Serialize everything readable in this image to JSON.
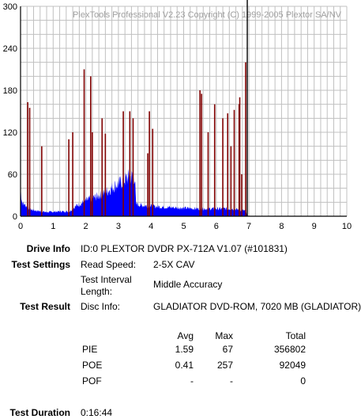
{
  "chart_data": {
    "type": "bar",
    "watermark": "PlexTools Professional V2.23 Copyright (C) 1999-2005 Plextor SA/NV",
    "ylim": [
      0,
      300
    ],
    "xlim": [
      0,
      10
    ],
    "y_ticks": [
      "0",
      "60",
      "120",
      "180",
      "240",
      "300"
    ],
    "x_ticks": [
      "0",
      "1",
      "2",
      "3",
      "4",
      "5",
      "6",
      "7",
      "8",
      "9",
      "10"
    ],
    "grid": true,
    "colors": {
      "pie": "#0000ff",
      "poe": "#800000",
      "marker": "#000000",
      "grid": "#c0c0c0"
    },
    "marker_x": 6.95,
    "pie_profile": [
      [
        0,
        40
      ],
      [
        0.05,
        20
      ],
      [
        0.2,
        14
      ],
      [
        0.3,
        10
      ],
      [
        0.5,
        8
      ],
      [
        0.8,
        6
      ],
      [
        1.2,
        7
      ],
      [
        1.5,
        7
      ],
      [
        1.7,
        15
      ],
      [
        1.9,
        20
      ],
      [
        2.1,
        25
      ],
      [
        2.4,
        30
      ],
      [
        2.7,
        38
      ],
      [
        2.9,
        45
      ],
      [
        3.1,
        50
      ],
      [
        3.3,
        57
      ],
      [
        3.5,
        58
      ],
      [
        3.54,
        18
      ],
      [
        3.7,
        16
      ],
      [
        4.2,
        14
      ],
      [
        4.6,
        13
      ],
      [
        5.0,
        12
      ],
      [
        5.5,
        11
      ],
      [
        6.0,
        11
      ],
      [
        6.5,
        11
      ],
      [
        6.9,
        8
      ],
      [
        6.95,
        0
      ]
    ],
    "poe_spikes": [
      [
        0.22,
        163
      ],
      [
        0.28,
        155
      ],
      [
        0.65,
        100
      ],
      [
        1.48,
        110
      ],
      [
        1.6,
        120
      ],
      [
        1.95,
        210
      ],
      [
        2.15,
        200
      ],
      [
        2.2,
        120
      ],
      [
        2.5,
        140
      ],
      [
        2.6,
        118
      ],
      [
        3.15,
        150
      ],
      [
        3.35,
        150
      ],
      [
        3.45,
        140
      ],
      [
        3.9,
        90
      ],
      [
        3.95,
        150
      ],
      [
        4.05,
        125
      ],
      [
        5.5,
        180
      ],
      [
        5.55,
        175
      ],
      [
        5.75,
        120
      ],
      [
        5.95,
        160
      ],
      [
        6.2,
        140
      ],
      [
        6.35,
        147
      ],
      [
        6.45,
        100
      ],
      [
        6.55,
        152
      ],
      [
        6.7,
        160
      ],
      [
        6.72,
        170
      ],
      [
        6.78,
        60
      ],
      [
        6.9,
        220
      ]
    ]
  },
  "info": {
    "drive_label": "Drive Info",
    "drive_value": "ID:0 PLEXTOR DVDR PX-712A V1.07 (#101831)",
    "settings_label": "Test Settings",
    "read_speed_key": "Read Speed:",
    "read_speed_value": "2-5X CAV",
    "interval_key_1": "Test Interval",
    "interval_key_2": "Length:",
    "interval_value": "Middle Accuracy",
    "result_label": "Test Result",
    "disc_key": "Disc Info:",
    "disc_value": "GLADIATOR DVD-ROM, 7020 MB (GLADIATOR)",
    "duration_label": "Test Duration",
    "duration_value": "0:16:44"
  },
  "results": {
    "headers": {
      "avg": "Avg",
      "max": "Max",
      "total": "Total"
    },
    "rows": [
      {
        "name": "PIE",
        "avg": "1.59",
        "max": "67",
        "total": "356802"
      },
      {
        "name": "POE",
        "avg": "0.41",
        "max": "257",
        "total": "92049"
      },
      {
        "name": "POF",
        "avg": "-",
        "max": "-",
        "total": "0"
      }
    ]
  }
}
